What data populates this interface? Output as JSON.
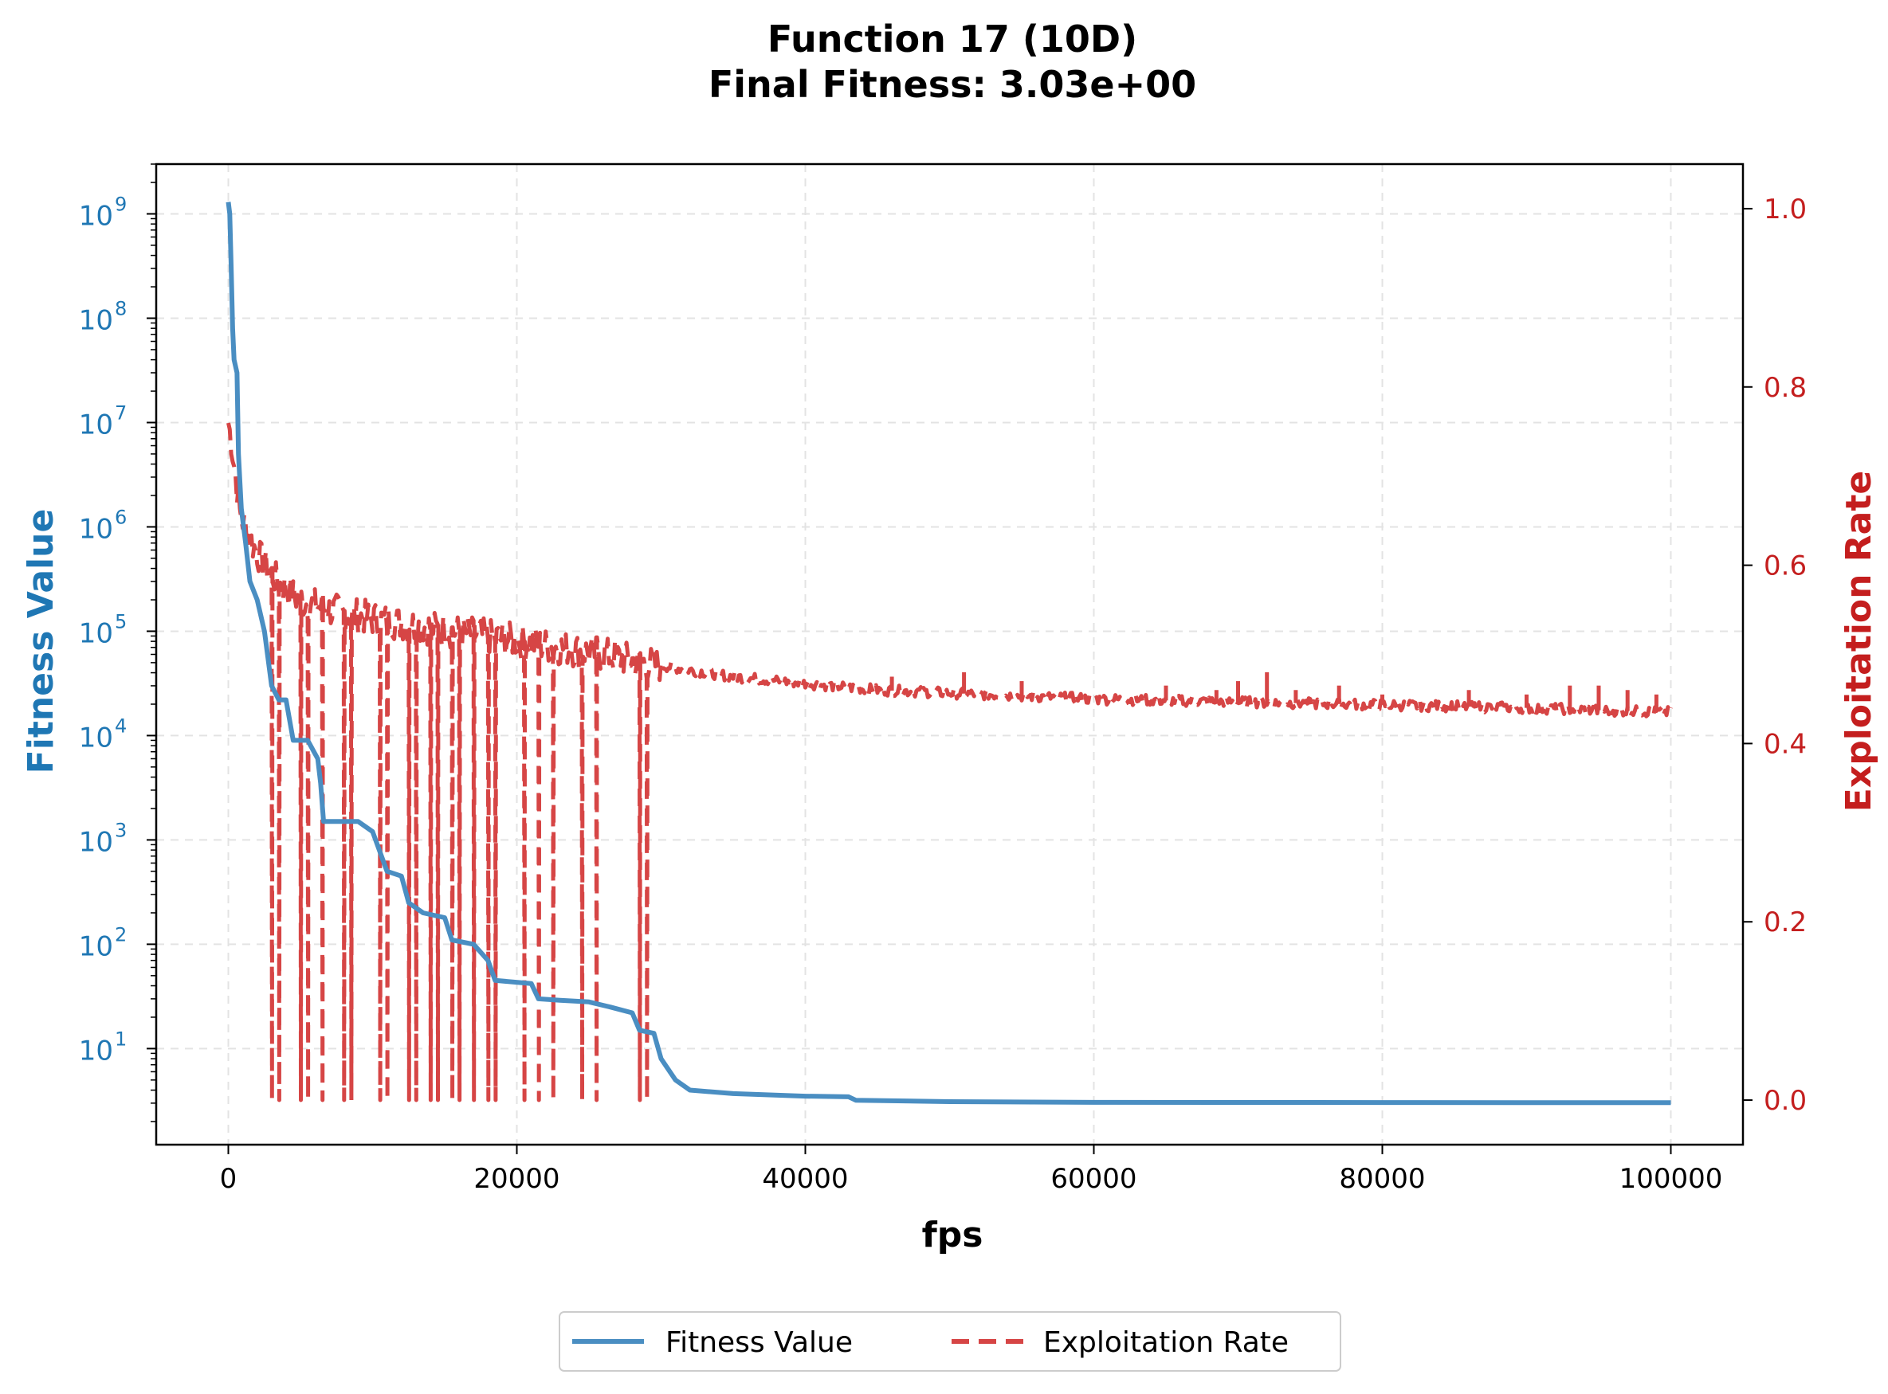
{
  "chart_data": {
    "type": "line",
    "title_line1": "Function 17 (10D)",
    "title_line2": "Final Fitness: 3.03e+00",
    "xlabel": "fps",
    "ylabel_left": "Fitness Value",
    "ylabel_right": "Exploitation Rate",
    "x_range": [
      -5000,
      105000
    ],
    "x_ticks": [
      0,
      20000,
      40000,
      60000,
      80000,
      100000
    ],
    "x_tick_labels": [
      "0",
      "20000",
      "40000",
      "60000",
      "80000",
      "100000"
    ],
    "y_left_scale": "log",
    "y_left_range": [
      1.2,
      3000000000
    ],
    "y_left_ticks": [
      10,
      100,
      1000,
      10000,
      100000,
      1000000,
      10000000,
      100000000,
      1000000000
    ],
    "y_left_tick_base": "10",
    "y_left_tick_exponents": [
      "1",
      "2",
      "3",
      "4",
      "5",
      "6",
      "7",
      "8",
      "9"
    ],
    "y_right_range": [
      -0.05,
      1.05
    ],
    "y_right_ticks": [
      0.0,
      0.2,
      0.4,
      0.6,
      0.8,
      1.0
    ],
    "y_right_tick_labels": [
      "0.0",
      "0.2",
      "0.4",
      "0.6",
      "0.8",
      "1.0"
    ],
    "grid": true,
    "legend_position": "bottom-center",
    "colors": {
      "fitness": "#4a8ec2",
      "exploitation": "#d64545",
      "left_axis": "#1f77b4",
      "right_axis": "#c41e1e"
    },
    "series": [
      {
        "name": "Fitness Value",
        "axis": "left",
        "style": "solid",
        "points": [
          [
            0,
            1300000000
          ],
          [
            100,
            1000000000
          ],
          [
            200,
            300000000
          ],
          [
            300,
            80000000
          ],
          [
            400,
            40000000
          ],
          [
            600,
            30000000
          ],
          [
            700,
            5000000
          ],
          [
            900,
            1500000
          ],
          [
            1200,
            700000
          ],
          [
            1500,
            300000
          ],
          [
            2000,
            200000
          ],
          [
            2500,
            100000
          ],
          [
            3000,
            30000
          ],
          [
            3500,
            22000
          ],
          [
            4000,
            22000
          ],
          [
            4500,
            9000
          ],
          [
            5500,
            9000
          ],
          [
            6200,
            6000
          ],
          [
            6400,
            3500
          ],
          [
            6600,
            1500
          ],
          [
            9000,
            1500
          ],
          [
            10000,
            1200
          ],
          [
            11000,
            500
          ],
          [
            12000,
            450
          ],
          [
            12500,
            250
          ],
          [
            13500,
            200
          ],
          [
            15000,
            180
          ],
          [
            15500,
            110
          ],
          [
            17000,
            100
          ],
          [
            18000,
            70
          ],
          [
            18500,
            45
          ],
          [
            21000,
            42
          ],
          [
            21500,
            30
          ],
          [
            23000,
            29
          ],
          [
            25000,
            28
          ],
          [
            26500,
            25
          ],
          [
            28000,
            22
          ],
          [
            28500,
            15
          ],
          [
            29500,
            14
          ],
          [
            30000,
            8
          ],
          [
            31000,
            5
          ],
          [
            32000,
            4
          ],
          [
            35000,
            3.7
          ],
          [
            40000,
            3.5
          ],
          [
            43000,
            3.45
          ],
          [
            43500,
            3.2
          ],
          [
            50000,
            3.1
          ],
          [
            60000,
            3.05
          ],
          [
            80000,
            3.04
          ],
          [
            100000,
            3.03
          ]
        ]
      },
      {
        "name": "Exploitation Rate",
        "axis": "right",
        "style": "dashed",
        "trend": [
          [
            0,
            0.76
          ],
          [
            200,
            0.74
          ],
          [
            500,
            0.7
          ],
          [
            800,
            0.66
          ],
          [
            1200,
            0.64
          ],
          [
            1800,
            0.62
          ],
          [
            2500,
            0.6
          ],
          [
            3500,
            0.58
          ],
          [
            5000,
            0.56
          ],
          [
            7000,
            0.55
          ],
          [
            10000,
            0.54
          ],
          [
            14000,
            0.53
          ],
          [
            18000,
            0.52
          ],
          [
            22000,
            0.51
          ],
          [
            26000,
            0.5
          ],
          [
            29000,
            0.49
          ],
          [
            35000,
            0.475
          ],
          [
            45000,
            0.46
          ],
          [
            60000,
            0.45
          ],
          [
            75000,
            0.445
          ],
          [
            90000,
            0.44
          ],
          [
            100000,
            0.435
          ]
        ],
        "drops_to_zero": [
          3000,
          3500,
          5000,
          5500,
          6500,
          8000,
          8500,
          10500,
          11000,
          12500,
          13000,
          14000,
          14500,
          15500,
          16000,
          17000,
          18000,
          18500,
          20500,
          21500,
          22500,
          24500,
          25500,
          28500,
          29000
        ],
        "spikes": [
          [
            46000,
            0.475
          ],
          [
            51000,
            0.48
          ],
          [
            55000,
            0.47
          ],
          [
            65000,
            0.465
          ],
          [
            68500,
            0.46
          ],
          [
            70000,
            0.47
          ],
          [
            72000,
            0.48
          ],
          [
            74000,
            0.46
          ],
          [
            77000,
            0.465
          ],
          [
            80000,
            0.455
          ],
          [
            86000,
            0.46
          ],
          [
            90000,
            0.455
          ],
          [
            93000,
            0.465
          ],
          [
            95000,
            0.465
          ],
          [
            97000,
            0.46
          ],
          [
            99000,
            0.455
          ]
        ]
      }
    ]
  },
  "legend": {
    "items": [
      {
        "label": "Fitness Value"
      },
      {
        "label": "Exploitation Rate"
      }
    ]
  }
}
